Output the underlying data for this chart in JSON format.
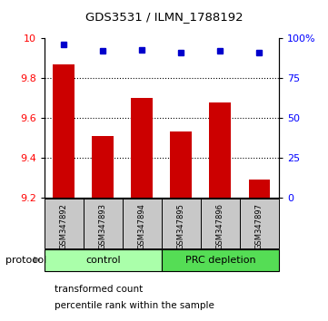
{
  "title": "GDS3531 / ILMN_1788192",
  "samples": [
    "GSM347892",
    "GSM347893",
    "GSM347894",
    "GSM347895",
    "GSM347896",
    "GSM347897"
  ],
  "bar_values": [
    9.87,
    9.51,
    9.7,
    9.53,
    9.68,
    9.29
  ],
  "percentile_values": [
    96,
    92,
    93,
    91,
    92,
    91
  ],
  "bar_color": "#cc0000",
  "percentile_color": "#0000cc",
  "ylim_left": [
    9.2,
    10.0
  ],
  "ylim_right": [
    0,
    100
  ],
  "yticks_left": [
    9.2,
    9.4,
    9.6,
    9.8,
    10.0
  ],
  "ytick_labels_left": [
    "9.2",
    "9.4",
    "9.6",
    "9.8",
    "10"
  ],
  "yticks_right": [
    0,
    25,
    50,
    75,
    100
  ],
  "ytick_labels_right": [
    "0",
    "25",
    "50",
    "75",
    "100%"
  ],
  "grid_lines": [
    9.4,
    9.6,
    9.8
  ],
  "groups": [
    {
      "label": "control",
      "start": 0,
      "end": 3,
      "color": "#aaffaa"
    },
    {
      "label": "PRC depletion",
      "start": 3,
      "end": 6,
      "color": "#55dd55"
    }
  ],
  "protocol_label": "protocol",
  "legend_items": [
    {
      "label": "transformed count",
      "color": "#cc0000"
    },
    {
      "label": "percentile rank within the sample",
      "color": "#0000cc"
    }
  ],
  "bar_base": 9.2,
  "background_color": "#ffffff",
  "sample_bg_color": "#c8c8c8"
}
